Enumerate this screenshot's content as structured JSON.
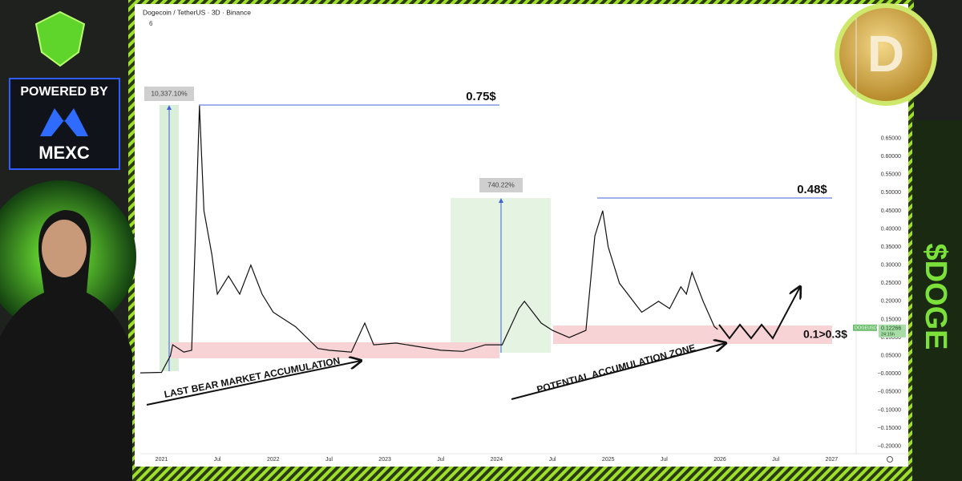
{
  "header": {
    "badge": "POWERED BY",
    "brand": "MEXC",
    "ticker": "$DOGE"
  },
  "chart_data": {
    "type": "line",
    "title": "Dogecoin / TetherUS · 3D · Binance",
    "indicator_count": "6",
    "series": [
      {
        "name": "DOGEUSDT",
        "color": "#111111",
        "x": [
          2020.81,
          2021.0,
          2021.08,
          2021.1,
          2021.2,
          2021.27,
          2021.3,
          2021.34,
          2021.38,
          2021.45,
          2021.5,
          2021.6,
          2021.7,
          2021.8,
          2021.9,
          2022.0,
          2022.2,
          2022.4,
          2022.5,
          2022.7,
          2022.82,
          2022.9,
          2023.1,
          2023.3,
          2023.5,
          2023.7,
          2023.9,
          2024.05,
          2024.2,
          2024.25,
          2024.4,
          2024.5,
          2024.65,
          2024.8,
          2024.88,
          2024.95,
          2025.0,
          2025.1,
          2025.3,
          2025.45,
          2025.55,
          2025.65,
          2025.7,
          2025.75,
          2025.85,
          2025.95,
          2025.98
        ],
        "values": [
          0.0026,
          0.004,
          0.05,
          0.08,
          0.06,
          0.065,
          0.35,
          0.74,
          0.45,
          0.33,
          0.22,
          0.27,
          0.22,
          0.3,
          0.22,
          0.17,
          0.13,
          0.07,
          0.065,
          0.06,
          0.14,
          0.08,
          0.085,
          0.075,
          0.065,
          0.062,
          0.08,
          0.08,
          0.18,
          0.2,
          0.14,
          0.12,
          0.1,
          0.12,
          0.38,
          0.45,
          0.35,
          0.25,
          0.17,
          0.2,
          0.18,
          0.24,
          0.22,
          0.28,
          0.2,
          0.13,
          0.12266
        ]
      }
    ],
    "last_price": 0.12266,
    "countdown": "24:15h",
    "xlim": [
      2020.81,
      2027.22
    ],
    "xticks": [
      {
        "value": 2021,
        "label": "2021"
      },
      {
        "value": 2021.5,
        "label": "Jul"
      },
      {
        "value": 2022,
        "label": "2022"
      },
      {
        "value": 2022.5,
        "label": "Jul"
      },
      {
        "value": 2023,
        "label": "2023"
      },
      {
        "value": 2023.5,
        "label": "Jul"
      },
      {
        "value": 2024,
        "label": "2024"
      },
      {
        "value": 2024.5,
        "label": "Jul"
      },
      {
        "value": 2025,
        "label": "2025"
      },
      {
        "value": 2025.5,
        "label": "Jul"
      },
      {
        "value": 2026,
        "label": "2026"
      },
      {
        "value": 2026.5,
        "label": "Jul"
      },
      {
        "value": 2027,
        "label": "2027"
      }
    ],
    "ylim": [
      -0.225,
      0.983
    ],
    "yticks": [
      {
        "value": 0.65,
        "label": "0.65000"
      },
      {
        "value": 0.6,
        "label": "0.60000"
      },
      {
        "value": 0.55,
        "label": "0.55000"
      },
      {
        "value": 0.5,
        "label": "0.50000"
      },
      {
        "value": 0.45,
        "label": "0.45000"
      },
      {
        "value": 0.4,
        "label": "0.40000"
      },
      {
        "value": 0.35,
        "label": "0.35000"
      },
      {
        "value": 0.3,
        "label": "0.30000"
      },
      {
        "value": 0.25,
        "label": "0.25000"
      },
      {
        "value": 0.2,
        "label": "0.20000"
      },
      {
        "value": 0.15,
        "label": "0.15000"
      },
      {
        "value": 0.1,
        "label": "0.10000"
      },
      {
        "value": 0.05,
        "label": "0.05000"
      },
      {
        "value": 0,
        "label": "−0.00000"
      },
      {
        "value": -0.05,
        "label": "−0.05000"
      },
      {
        "value": -0.1,
        "label": "−0.10000"
      },
      {
        "value": -0.15,
        "label": "−0.15000"
      },
      {
        "value": -0.2,
        "label": "−0.20000"
      }
    ],
    "grid": false,
    "annotations": {
      "pump_2021": "10,337.10%",
      "pump_2024": "740.22%",
      "target_2021": "0.75$",
      "target_2024": "0.48$",
      "past_zone": "LAST BEAR MARKET ACCUMULATION",
      "future_zone": "POTENTIAL ACCUMULATION ZONE",
      "range": "0.1>0.3$"
    }
  }
}
